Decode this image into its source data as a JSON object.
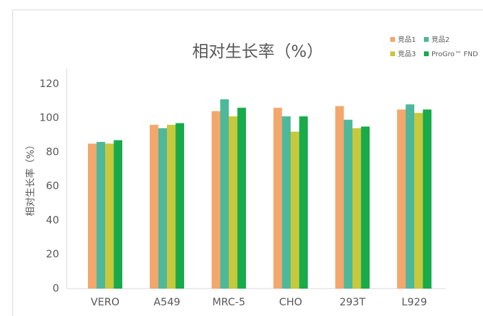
{
  "chart_data": {
    "type": "bar",
    "title": "相对生长率（%）",
    "y_label": "相对生长率（%）",
    "categories": [
      "VERO",
      "A549",
      "MRC-5",
      "CHO",
      "293T",
      "L929"
    ],
    "series": [
      {
        "name": "竞品1",
        "color": "#f4a76d",
        "values": [
          85,
          96,
          104,
          106,
          107,
          105
        ]
      },
      {
        "name": "竞品2",
        "color": "#4db89a",
        "values": [
          86,
          94,
          111,
          101,
          99,
          108
        ]
      },
      {
        "name": "竞品3",
        "color": "#c8c83d",
        "values": [
          85,
          96,
          101,
          92,
          94,
          103
        ]
      },
      {
        "name": "ProGro™ FND",
        "color": "#18ab4b",
        "values": [
          87,
          97,
          106,
          101,
          95,
          105
        ]
      }
    ],
    "ylim": [
      0,
      129
    ],
    "yticks": [
      0,
      20,
      40,
      60,
      80,
      100,
      120
    ],
    "grid": false
  }
}
